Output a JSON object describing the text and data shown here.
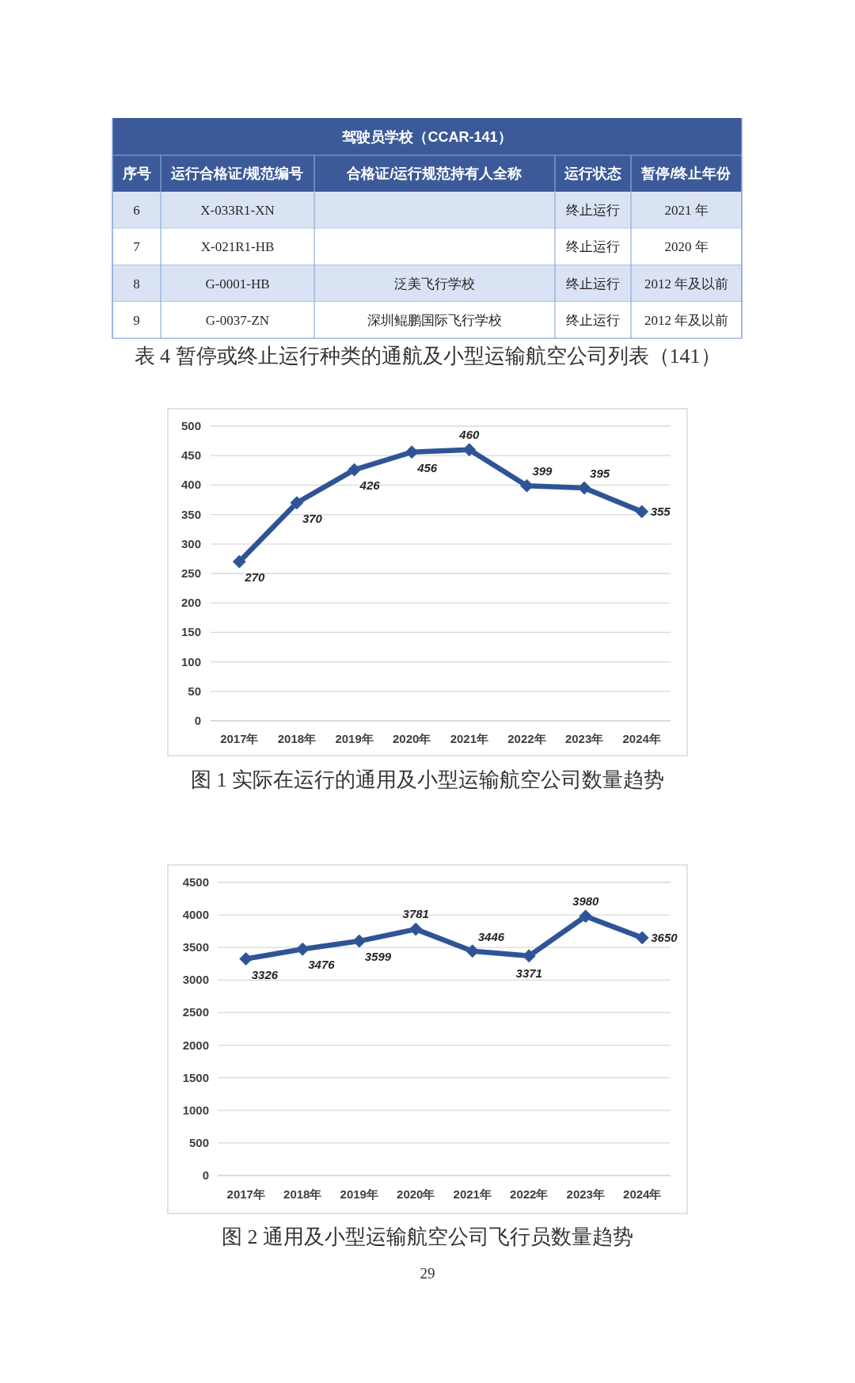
{
  "chart_data": [
    {
      "type": "heatmap",
      "title": "驾驶员学校（CCAR-141）",
      "ylabel": "序号",
      "y_categories": [
        "6",
        "7",
        "8",
        "9"
      ],
      "categories": [
        "运行合格证/规范编号",
        "合格证/运行规范持有人全称",
        "运行状态",
        "暂停/终止年份"
      ],
      "cells": [
        [
          null,
          null,
          null,
          null
        ],
        [
          null,
          null,
          null,
          null
        ],
        [
          null,
          null,
          null,
          null
        ],
        [
          null,
          null,
          null,
          null
        ]
      ],
      "cell_labels": [
        [
          "X-033R1-XN",
          null,
          "终止运行",
          "2021 年"
        ],
        [
          "X-021R1-HB",
          null,
          "终止运行",
          "2020 年"
        ],
        [
          "G-0001-HB",
          "泛美飞行学校",
          "终止运行",
          "2012 年及以前"
        ],
        [
          "G-0037-ZN",
          "深圳鲲鹏国际飞行学校",
          "终止运行",
          "2012 年及以前"
        ]
      ],
      "annotations": [
        "表 4 暂停或终止运行种类的通航及小型运输航空公司列表（141）"
      ]
    },
    {
      "type": "line",
      "categories": [
        "2017年",
        "2018年",
        "2019年",
        "2020年",
        "2021年",
        "2022年",
        "2023年",
        "2024年"
      ],
      "values": [
        270,
        370,
        426,
        456,
        460,
        399,
        395,
        355
      ],
      "color": "#2f5496",
      "ylim": [
        0,
        500
      ],
      "yticks": [
        0,
        50,
        100,
        150,
        200,
        250,
        300,
        350,
        400,
        450,
        500
      ],
      "grid": "y",
      "marker": "diamond",
      "data_labels": true,
      "annotations": [
        "图 1 实际在运行的通用及小型运输航空公司数量趋势"
      ]
    },
    {
      "type": "line",
      "categories": [
        "2017年",
        "2018年",
        "2019年",
        "2020年",
        "2021年",
        "2022年",
        "2023年",
        "2024年"
      ],
      "values": [
        3326,
        3476,
        3599,
        3781,
        3446,
        3371,
        3980,
        3650
      ],
      "color": "#2f5496",
      "ylim": [
        0,
        4500
      ],
      "yticks": [
        0,
        500,
        1000,
        1500,
        2000,
        2500,
        3000,
        3500,
        4000,
        4500
      ],
      "grid": "y",
      "marker": "diamond",
      "data_labels": true,
      "annotations": [
        "图 2 通用及小型运输航空公司飞行员数量趋势",
        "29"
      ]
    }
  ]
}
